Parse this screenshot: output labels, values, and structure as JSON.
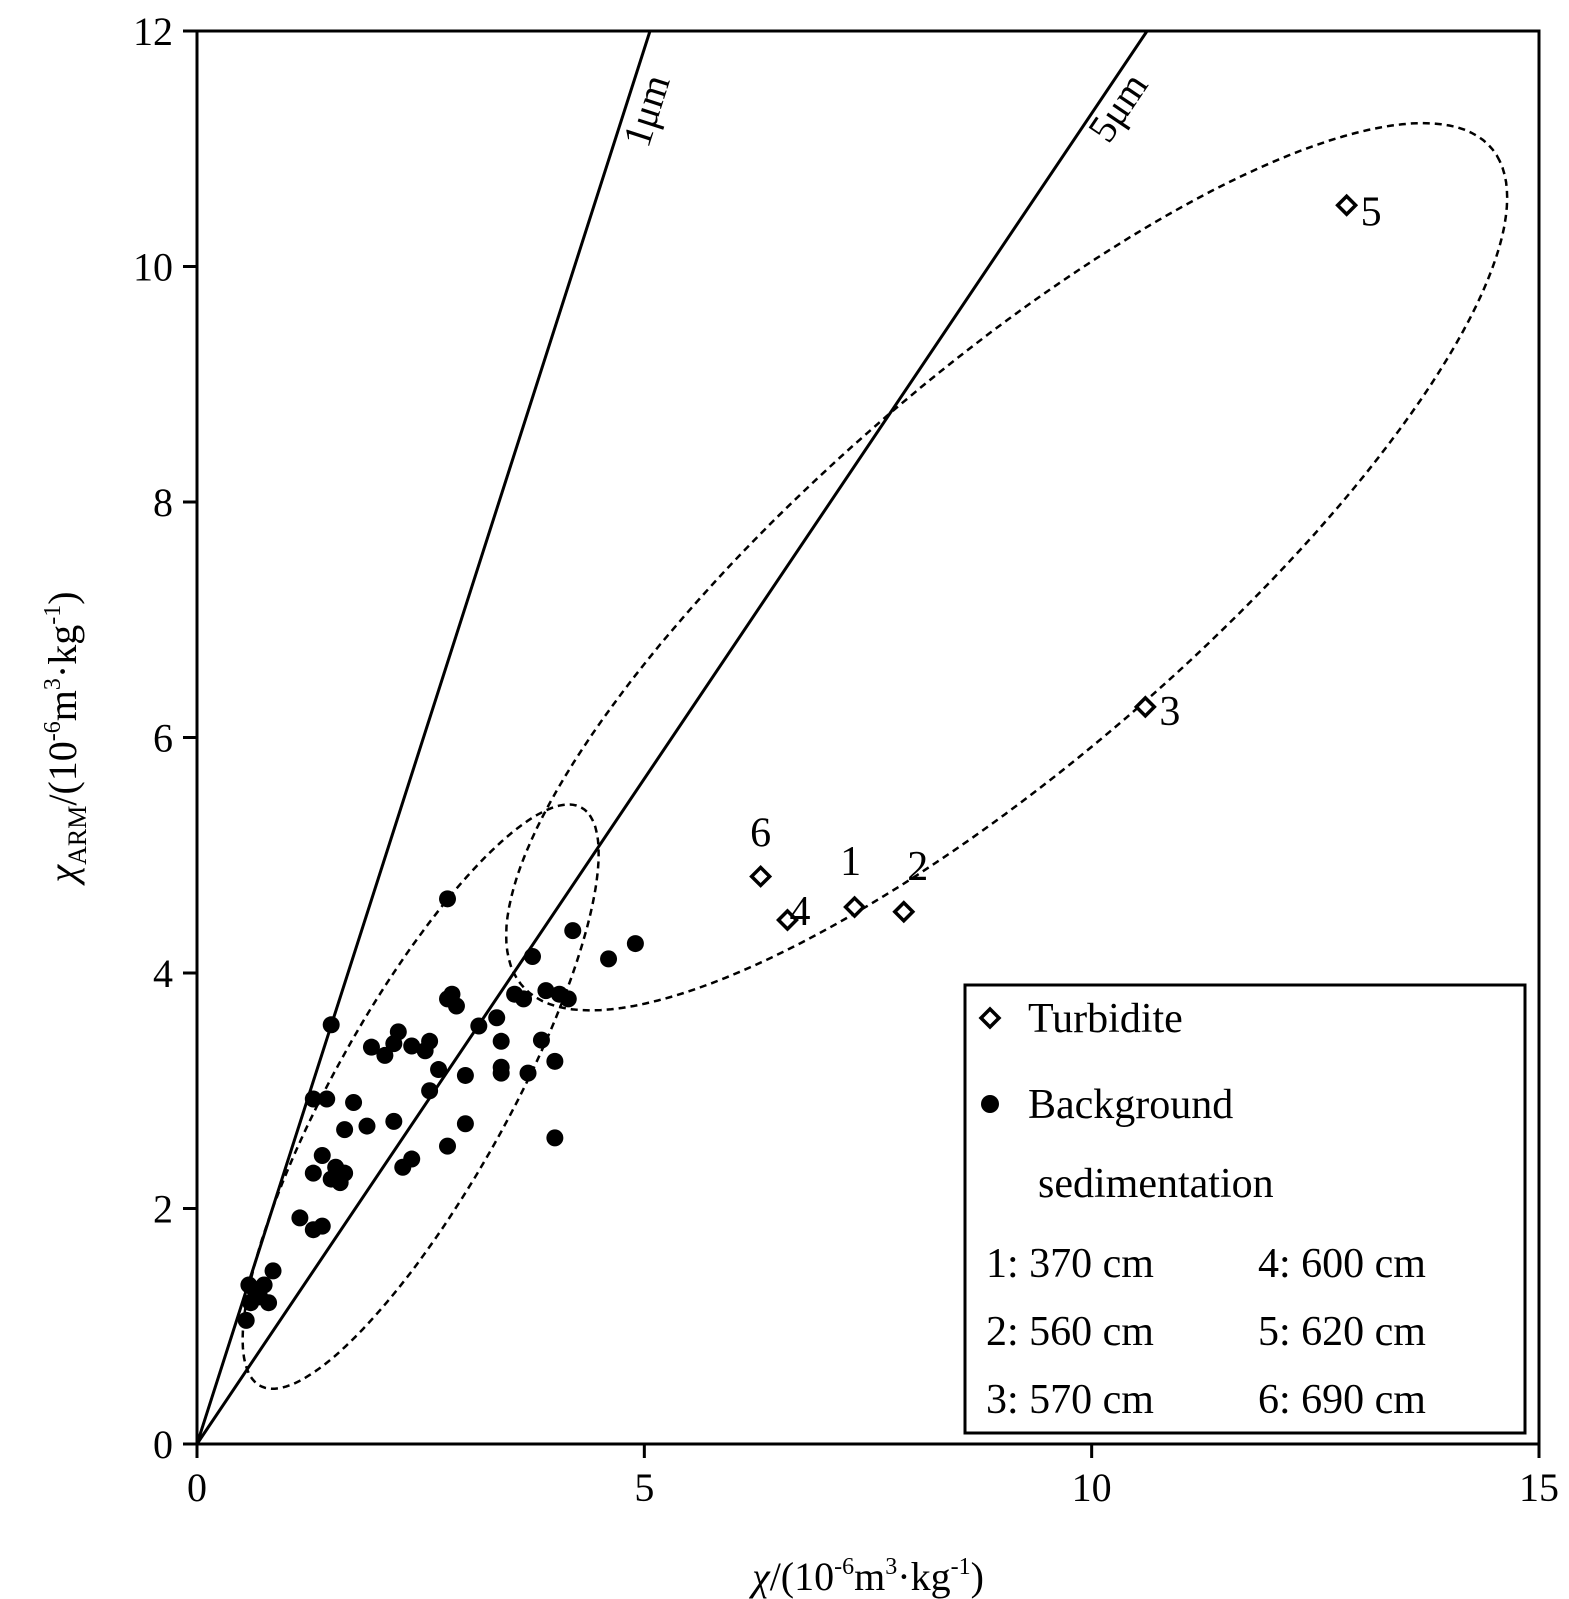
{
  "chart_data": {
    "type": "scatter",
    "xlabel": {
      "symbol": "χ",
      "open": "/(10",
      "exp": "-6",
      "unit": "m",
      "unit_exp": "3",
      "rest": "·kg",
      "rest_exp": "-1",
      "close": ")"
    },
    "ylabel": {
      "symbol": "χ",
      "sub": "ARM",
      "open": "/(10",
      "exp": "-6",
      "unit": "m",
      "unit_exp": "3",
      "rest": "·kg",
      "rest_exp": "-1",
      "close": ")"
    },
    "xlim": [
      0,
      15
    ],
    "ylim": [
      0,
      12
    ],
    "xticks": [
      "0",
      "5",
      "10",
      "15"
    ],
    "yticks": [
      "0",
      "2",
      "4",
      "6",
      "8",
      "10",
      "12"
    ],
    "grid": false,
    "legend_position": "bottom-right",
    "reference_lines": [
      {
        "label": "1μm",
        "slope": 2.37
      },
      {
        "label": "5μm",
        "slope": 1.13
      }
    ],
    "series": [
      {
        "name": "Turbidite",
        "marker": "open-diamond",
        "points": [
          {
            "x": 7.35,
            "y": 4.56,
            "label": "1"
          },
          {
            "x": 7.9,
            "y": 4.52,
            "label": "2"
          },
          {
            "x": 10.6,
            "y": 6.26,
            "label": "3"
          },
          {
            "x": 6.6,
            "y": 4.45,
            "label": "4"
          },
          {
            "x": 12.85,
            "y": 10.52,
            "label": "5"
          },
          {
            "x": 6.3,
            "y": 4.82,
            "label": "6"
          }
        ]
      },
      {
        "name_lines": [
          "Background",
          "sedimentation"
        ],
        "marker": "filled-circle",
        "points": [
          [
            0.55,
            1.05
          ],
          [
            0.6,
            1.2
          ],
          [
            0.58,
            1.35
          ],
          [
            0.65,
            1.3
          ],
          [
            0.7,
            1.25
          ],
          [
            0.75,
            1.35
          ],
          [
            0.8,
            1.2
          ],
          [
            0.85,
            1.47
          ],
          [
            1.15,
            1.92
          ],
          [
            1.3,
            1.82
          ],
          [
            1.4,
            1.85
          ],
          [
            1.3,
            2.3
          ],
          [
            1.4,
            2.45
          ],
          [
            1.5,
            2.25
          ],
          [
            1.55,
            2.35
          ],
          [
            1.6,
            2.22
          ],
          [
            1.65,
            2.3
          ],
          [
            1.3,
            2.93
          ],
          [
            1.45,
            2.93
          ],
          [
            1.65,
            2.67
          ],
          [
            1.75,
            2.9
          ],
          [
            1.5,
            3.56
          ],
          [
            1.9,
            2.7
          ],
          [
            2.2,
            2.74
          ],
          [
            2.3,
            2.35
          ],
          [
            2.4,
            2.42
          ],
          [
            2.6,
            3.0
          ],
          [
            2.7,
            3.18
          ],
          [
            2.8,
            2.53
          ],
          [
            3.0,
            2.72
          ],
          [
            3.0,
            3.13
          ],
          [
            1.95,
            3.37
          ],
          [
            2.1,
            3.3
          ],
          [
            2.2,
            3.4
          ],
          [
            2.25,
            3.5
          ],
          [
            2.4,
            3.38
          ],
          [
            2.55,
            3.34
          ],
          [
            2.6,
            3.42
          ],
          [
            2.8,
            3.78
          ],
          [
            2.85,
            3.82
          ],
          [
            2.9,
            3.72
          ],
          [
            3.15,
            3.55
          ],
          [
            3.35,
            3.62
          ],
          [
            3.4,
            3.42
          ],
          [
            3.4,
            3.2
          ],
          [
            3.4,
            3.15
          ],
          [
            3.55,
            3.82
          ],
          [
            3.65,
            3.78
          ],
          [
            3.7,
            3.15
          ],
          [
            3.85,
            3.43
          ],
          [
            3.9,
            3.85
          ],
          [
            4.05,
            3.82
          ],
          [
            4.15,
            3.78
          ],
          [
            3.75,
            4.14
          ],
          [
            4.0,
            3.25
          ],
          [
            4.0,
            2.6
          ],
          [
            4.2,
            4.36
          ],
          [
            4.6,
            4.12
          ],
          [
            4.9,
            4.25
          ],
          [
            2.8,
            4.63
          ]
        ]
      }
    ],
    "annotation_ellipses": [
      {
        "cx": 2.5,
        "cy": 2.95,
        "rx": 3.05,
        "ry": 0.9,
        "angle_deg": 52.5
      },
      {
        "cx": 9.05,
        "cy": 7.45,
        "rx": 6.5,
        "ry": 1.8,
        "angle_deg": 32
      }
    ],
    "legend": {
      "depths": [
        [
          "1: 370 cm",
          "4: 600 cm"
        ],
        [
          "2: 560 cm",
          "5: 620 cm"
        ],
        [
          "3: 570 cm",
          "6: 690 cm"
        ]
      ]
    }
  }
}
